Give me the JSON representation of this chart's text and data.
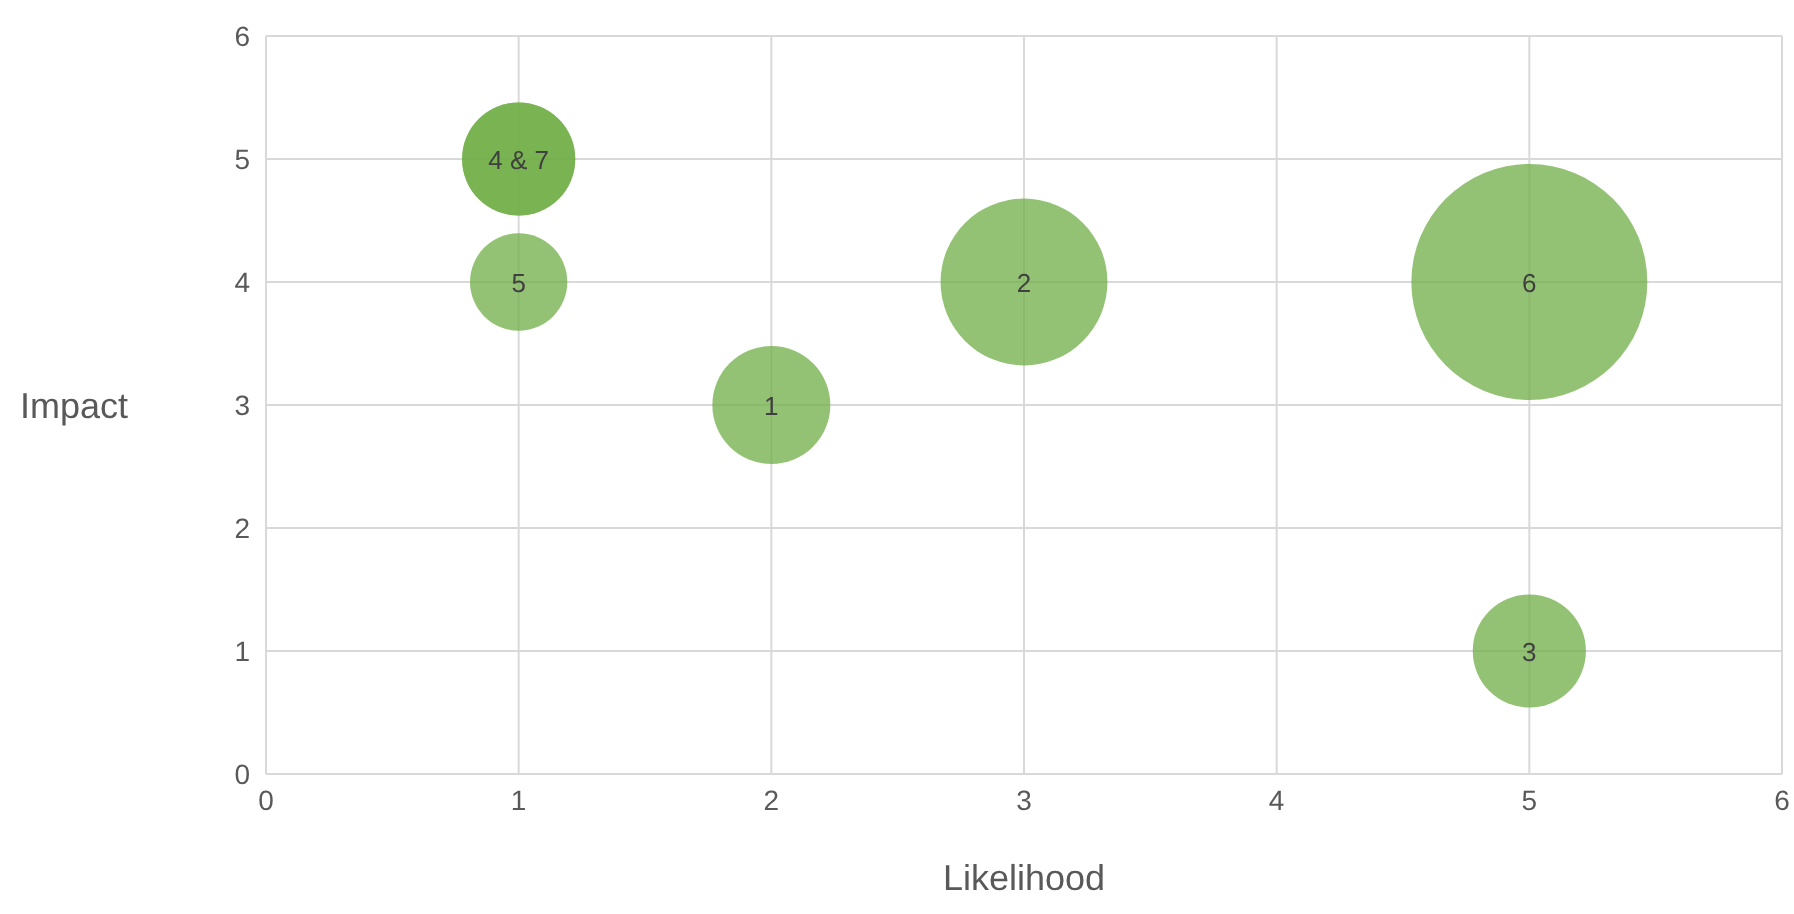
{
  "chart_data": {
    "type": "bubble",
    "xlabel": "Likelihood",
    "ylabel": "Impact",
    "series": [
      {
        "name": "1",
        "color": "#70ad47",
        "x": [
          2
        ],
        "values": [
          3
        ],
        "sizes": [
          0.25
        ]
      },
      {
        "name": "2",
        "color": "#70ad47",
        "x": [
          3
        ],
        "values": [
          4
        ],
        "sizes": [
          0.5
        ]
      },
      {
        "name": "3",
        "color": "#70ad47",
        "x": [
          5
        ],
        "values": [
          1
        ],
        "sizes": [
          0.23
        ]
      },
      {
        "name": "4 & 7",
        "color": "#70ad47",
        "x": [
          1,
          1
        ],
        "values": [
          5,
          5
        ],
        "sizes": [
          0.23,
          0.23
        ]
      },
      {
        "name": "5",
        "color": "#70ad47",
        "x": [
          1
        ],
        "values": [
          4
        ],
        "sizes": [
          0.17
        ]
      },
      {
        "name": "6",
        "color": "#70ad47",
        "x": [
          5
        ],
        "values": [
          4
        ],
        "sizes": [
          1
        ]
      }
    ],
    "xlim": [
      0,
      6
    ],
    "xticks": [
      0,
      1,
      2,
      3,
      4,
      5,
      6
    ],
    "ylim": [
      0,
      6
    ],
    "yticks": [
      0,
      1,
      2,
      3,
      4,
      5,
      6
    ],
    "grid": true,
    "legend": false
  }
}
